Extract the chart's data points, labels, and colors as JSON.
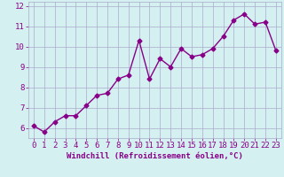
{
  "x": [
    0,
    1,
    2,
    3,
    4,
    5,
    6,
    7,
    8,
    9,
    10,
    11,
    12,
    13,
    14,
    15,
    16,
    17,
    18,
    19,
    20,
    21,
    22,
    23
  ],
  "y": [
    6.1,
    5.8,
    6.3,
    6.6,
    6.6,
    7.1,
    7.6,
    7.7,
    8.4,
    8.6,
    10.3,
    8.4,
    9.4,
    9.0,
    9.9,
    9.5,
    9.6,
    9.9,
    10.5,
    11.3,
    11.6,
    11.1,
    11.2,
    9.8
  ],
  "line_color": "#880088",
  "marker": "D",
  "marker_size": 2.5,
  "bg_color": "#d4f0f0",
  "grid_color": "#aaaacc",
  "xlabel": "Windchill (Refroidissement éolien,°C)",
  "xlabel_color": "#880088",
  "tick_color": "#880088",
  "ylim": [
    5.5,
    12.2
  ],
  "xlim": [
    -0.5,
    23.5
  ],
  "yticks": [
    6,
    7,
    8,
    9,
    10,
    11,
    12
  ],
  "xticks": [
    0,
    1,
    2,
    3,
    4,
    5,
    6,
    7,
    8,
    9,
    10,
    11,
    12,
    13,
    14,
    15,
    16,
    17,
    18,
    19,
    20,
    21,
    22,
    23
  ],
  "line_width": 1.0,
  "tick_fontsize": 6.5,
  "xlabel_fontsize": 6.5
}
